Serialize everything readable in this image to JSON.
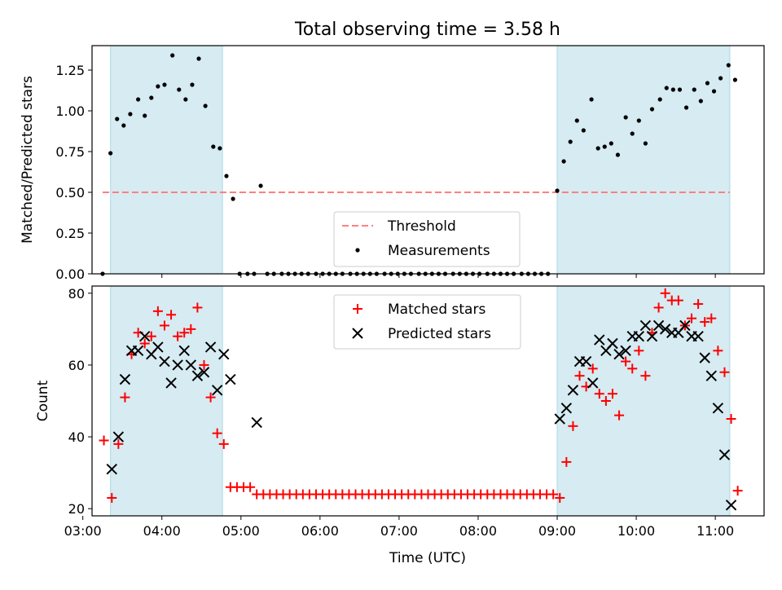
{
  "colors": {
    "shade": "#add8e6",
    "threshold": "#ff7f7f",
    "measurement": "#000000",
    "matched": "#ff0000",
    "predicted": "#000000"
  },
  "chart_data": [
    {
      "type": "scatter",
      "title": "Total observing time = 3.58 h",
      "xlabel": "",
      "ylabel": "Matched/Predicted stars",
      "xlim": [
        "03:07",
        "11:37"
      ],
      "ylim": [
        0,
        1.4
      ],
      "x_ticks": [
        "03:00",
        "04:00",
        "05:00",
        "06:00",
        "07:00",
        "08:00",
        "09:00",
        "10:00",
        "11:00"
      ],
      "y_ticks": [
        "0.00",
        "0.25",
        "0.50",
        "0.75",
        "1.00",
        "1.25"
      ],
      "shaded_intervals": [
        [
          "03:21",
          "04:46"
        ],
        [
          "09:00",
          "11:11"
        ]
      ],
      "legend": {
        "position": "lower-center",
        "entries": [
          "Threshold",
          "Measurements"
        ]
      },
      "threshold": {
        "name": "Threshold",
        "y": 0.5,
        "x_range": [
          "03:15",
          "11:11"
        ]
      },
      "series": [
        {
          "name": "Measurements",
          "points": [
            [
              "03:15",
              0.0
            ],
            [
              "03:21",
              0.74
            ],
            [
              "03:26",
              0.95
            ],
            [
              "03:31",
              0.91
            ],
            [
              "03:36",
              0.98
            ],
            [
              "03:42",
              1.07
            ],
            [
              "03:47",
              0.97
            ],
            [
              "03:52",
              1.08
            ],
            [
              "03:57",
              1.15
            ],
            [
              "04:02",
              1.16
            ],
            [
              "04:08",
              1.34
            ],
            [
              "04:13",
              1.13
            ],
            [
              "04:18",
              1.07
            ],
            [
              "04:23",
              1.16
            ],
            [
              "04:28",
              1.32
            ],
            [
              "04:33",
              1.03
            ],
            [
              "04:39",
              0.78
            ],
            [
              "04:44",
              0.77
            ],
            [
              "04:49",
              0.6
            ],
            [
              "04:54",
              0.46
            ],
            [
              "04:59",
              0.0
            ],
            [
              "05:05",
              0.0
            ],
            [
              "05:10",
              0.0
            ],
            [
              "05:15",
              0.54
            ],
            [
              "05:20",
              0.0
            ],
            [
              "05:25",
              0.0
            ],
            [
              "05:31",
              0.0
            ],
            [
              "05:36",
              0.0
            ],
            [
              "05:41",
              0.0
            ],
            [
              "05:46",
              0.0
            ],
            [
              "05:51",
              0.0
            ],
            [
              "05:57",
              0.0
            ],
            [
              "06:02",
              0.0
            ],
            [
              "06:07",
              0.0
            ],
            [
              "06:12",
              0.0
            ],
            [
              "06:17",
              0.0
            ],
            [
              "06:23",
              0.0
            ],
            [
              "06:28",
              0.0
            ],
            [
              "06:33",
              0.0
            ],
            [
              "06:38",
              0.0
            ],
            [
              "06:43",
              0.0
            ],
            [
              "06:49",
              0.0
            ],
            [
              "06:54",
              0.0
            ],
            [
              "06:59",
              0.0
            ],
            [
              "07:04",
              0.0
            ],
            [
              "07:09",
              0.0
            ],
            [
              "07:15",
              0.0
            ],
            [
              "07:20",
              0.0
            ],
            [
              "07:25",
              0.0
            ],
            [
              "07:30",
              0.0
            ],
            [
              "07:35",
              0.0
            ],
            [
              "07:41",
              0.0
            ],
            [
              "07:46",
              0.0
            ],
            [
              "07:51",
              0.0
            ],
            [
              "07:56",
              0.0
            ],
            [
              "08:01",
              0.0
            ],
            [
              "08:07",
              0.0
            ],
            [
              "08:12",
              0.0
            ],
            [
              "08:17",
              0.0
            ],
            [
              "08:22",
              0.0
            ],
            [
              "08:27",
              0.0
            ],
            [
              "08:33",
              0.0
            ],
            [
              "08:38",
              0.0
            ],
            [
              "08:43",
              0.0
            ],
            [
              "08:48",
              0.0
            ],
            [
              "08:53",
              0.0
            ],
            [
              "09:00",
              0.51
            ],
            [
              "09:05",
              0.69
            ],
            [
              "09:10",
              0.81
            ],
            [
              "09:15",
              0.94
            ],
            [
              "09:20",
              0.88
            ],
            [
              "09:26",
              1.07
            ],
            [
              "09:31",
              0.77
            ],
            [
              "09:36",
              0.78
            ],
            [
              "09:41",
              0.8
            ],
            [
              "09:46",
              0.73
            ],
            [
              "09:52",
              0.96
            ],
            [
              "09:57",
              0.86
            ],
            [
              "10:02",
              0.94
            ],
            [
              "10:07",
              0.8
            ],
            [
              "10:12",
              1.01
            ],
            [
              "10:18",
              1.07
            ],
            [
              "10:23",
              1.14
            ],
            [
              "10:28",
              1.13
            ],
            [
              "10:33",
              1.13
            ],
            [
              "10:38",
              1.02
            ],
            [
              "10:44",
              1.13
            ],
            [
              "10:49",
              1.06
            ],
            [
              "10:54",
              1.17
            ],
            [
              "10:59",
              1.12
            ],
            [
              "11:04",
              1.2
            ],
            [
              "11:10",
              1.28
            ],
            [
              "11:15",
              1.19
            ]
          ]
        }
      ]
    },
    {
      "type": "scatter",
      "title": "",
      "xlabel": "Time (UTC)",
      "ylabel": "Count",
      "xlim": [
        "03:07",
        "11:37"
      ],
      "ylim": [
        18,
        82
      ],
      "x_ticks": [
        "03:00",
        "04:00",
        "05:00",
        "06:00",
        "07:00",
        "08:00",
        "09:00",
        "10:00",
        "11:00"
      ],
      "y_ticks": [
        "20",
        "40",
        "60",
        "80"
      ],
      "shaded_intervals": [
        [
          "03:21",
          "04:46"
        ],
        [
          "09:00",
          "11:11"
        ]
      ],
      "legend": {
        "position": "upper-center",
        "entries": [
          "Matched stars",
          "Predicted stars"
        ]
      },
      "series": [
        {
          "name": "Matched stars",
          "points": [
            [
              "03:16",
              39
            ],
            [
              "03:22",
              23
            ],
            [
              "03:27",
              38
            ],
            [
              "03:32",
              51
            ],
            [
              "03:37",
              63
            ],
            [
              "03:42",
              69
            ],
            [
              "03:47",
              66
            ],
            [
              "03:52",
              68
            ],
            [
              "03:57",
              75
            ],
            [
              "04:02",
              71
            ],
            [
              "04:07",
              74
            ],
            [
              "04:12",
              68
            ],
            [
              "04:17",
              69
            ],
            [
              "04:22",
              70
            ],
            [
              "04:27",
              76
            ],
            [
              "04:32",
              60
            ],
            [
              "04:37",
              51
            ],
            [
              "04:42",
              41
            ],
            [
              "04:47",
              38
            ],
            [
              "04:52",
              26
            ],
            [
              "04:57",
              26
            ],
            [
              "05:02",
              26
            ],
            [
              "05:07",
              26
            ],
            [
              "05:12",
              24
            ],
            [
              "05:17",
              24
            ],
            [
              "05:22",
              24
            ],
            [
              "05:27",
              24
            ],
            [
              "05:32",
              24
            ],
            [
              "05:37",
              24
            ],
            [
              "05:42",
              24
            ],
            [
              "05:47",
              24
            ],
            [
              "05:52",
              24
            ],
            [
              "05:57",
              24
            ],
            [
              "06:02",
              24
            ],
            [
              "06:07",
              24
            ],
            [
              "06:12",
              24
            ],
            [
              "06:17",
              24
            ],
            [
              "06:22",
              24
            ],
            [
              "06:27",
              24
            ],
            [
              "06:32",
              24
            ],
            [
              "06:37",
              24
            ],
            [
              "06:42",
              24
            ],
            [
              "06:47",
              24
            ],
            [
              "06:52",
              24
            ],
            [
              "06:57",
              24
            ],
            [
              "07:02",
              24
            ],
            [
              "07:07",
              24
            ],
            [
              "07:12",
              24
            ],
            [
              "07:17",
              24
            ],
            [
              "07:22",
              24
            ],
            [
              "07:27",
              24
            ],
            [
              "07:32",
              24
            ],
            [
              "07:37",
              24
            ],
            [
              "07:42",
              24
            ],
            [
              "07:47",
              24
            ],
            [
              "07:52",
              24
            ],
            [
              "07:57",
              24
            ],
            [
              "08:02",
              24
            ],
            [
              "08:07",
              24
            ],
            [
              "08:12",
              24
            ],
            [
              "08:17",
              24
            ],
            [
              "08:22",
              24
            ],
            [
              "08:27",
              24
            ],
            [
              "08:32",
              24
            ],
            [
              "08:37",
              24
            ],
            [
              "08:42",
              24
            ],
            [
              "08:47",
              24
            ],
            [
              "08:52",
              24
            ],
            [
              "08:57",
              24
            ],
            [
              "09:02",
              23
            ],
            [
              "09:07",
              33
            ],
            [
              "09:12",
              43
            ],
            [
              "09:17",
              57
            ],
            [
              "09:22",
              54
            ],
            [
              "09:27",
              59
            ],
            [
              "09:32",
              52
            ],
            [
              "09:37",
              50
            ],
            [
              "09:42",
              52
            ],
            [
              "09:47",
              46
            ],
            [
              "09:52",
              61
            ],
            [
              "09:57",
              59
            ],
            [
              "10:02",
              64
            ],
            [
              "10:07",
              57
            ],
            [
              "10:12",
              69
            ],
            [
              "10:17",
              76
            ],
            [
              "10:22",
              80
            ],
            [
              "10:27",
              78
            ],
            [
              "10:32",
              78
            ],
            [
              "10:37",
              71
            ],
            [
              "10:42",
              73
            ],
            [
              "10:47",
              77
            ],
            [
              "10:52",
              72
            ],
            [
              "10:57",
              73
            ],
            [
              "11:02",
              64
            ],
            [
              "11:07",
              58
            ],
            [
              "11:12",
              45
            ],
            [
              "11:17",
              25
            ]
          ]
        },
        {
          "name": "Predicted stars",
          "points": [
            [
              "03:22",
              31
            ],
            [
              "03:27",
              40
            ],
            [
              "03:32",
              56
            ],
            [
              "03:37",
              64
            ],
            [
              "03:42",
              64
            ],
            [
              "03:47",
              68
            ],
            [
              "03:52",
              63
            ],
            [
              "03:57",
              65
            ],
            [
              "04:02",
              61
            ],
            [
              "04:07",
              55
            ],
            [
              "04:12",
              60
            ],
            [
              "04:17",
              64
            ],
            [
              "04:22",
              60
            ],
            [
              "04:27",
              57
            ],
            [
              "04:32",
              58
            ],
            [
              "04:37",
              65
            ],
            [
              "04:42",
              53
            ],
            [
              "04:47",
              63
            ],
            [
              "04:52",
              56
            ],
            [
              "05:12",
              44
            ],
            [
              "09:02",
              45
            ],
            [
              "09:07",
              48
            ],
            [
              "09:12",
              53
            ],
            [
              "09:17",
              61
            ],
            [
              "09:22",
              61
            ],
            [
              "09:27",
              55
            ],
            [
              "09:32",
              67
            ],
            [
              "09:37",
              64
            ],
            [
              "09:42",
              66
            ],
            [
              "09:47",
              63
            ],
            [
              "09:52",
              64
            ],
            [
              "09:57",
              68
            ],
            [
              "10:02",
              68
            ],
            [
              "10:07",
              71
            ],
            [
              "10:12",
              68
            ],
            [
              "10:17",
              71
            ],
            [
              "10:22",
              70
            ],
            [
              "10:27",
              69
            ],
            [
              "10:32",
              69
            ],
            [
              "10:37",
              71
            ],
            [
              "10:42",
              68
            ],
            [
              "10:47",
              68
            ],
            [
              "10:52",
              62
            ],
            [
              "10:57",
              57
            ],
            [
              "11:02",
              48
            ],
            [
              "11:07",
              35
            ],
            [
              "11:12",
              21
            ]
          ]
        }
      ]
    }
  ]
}
